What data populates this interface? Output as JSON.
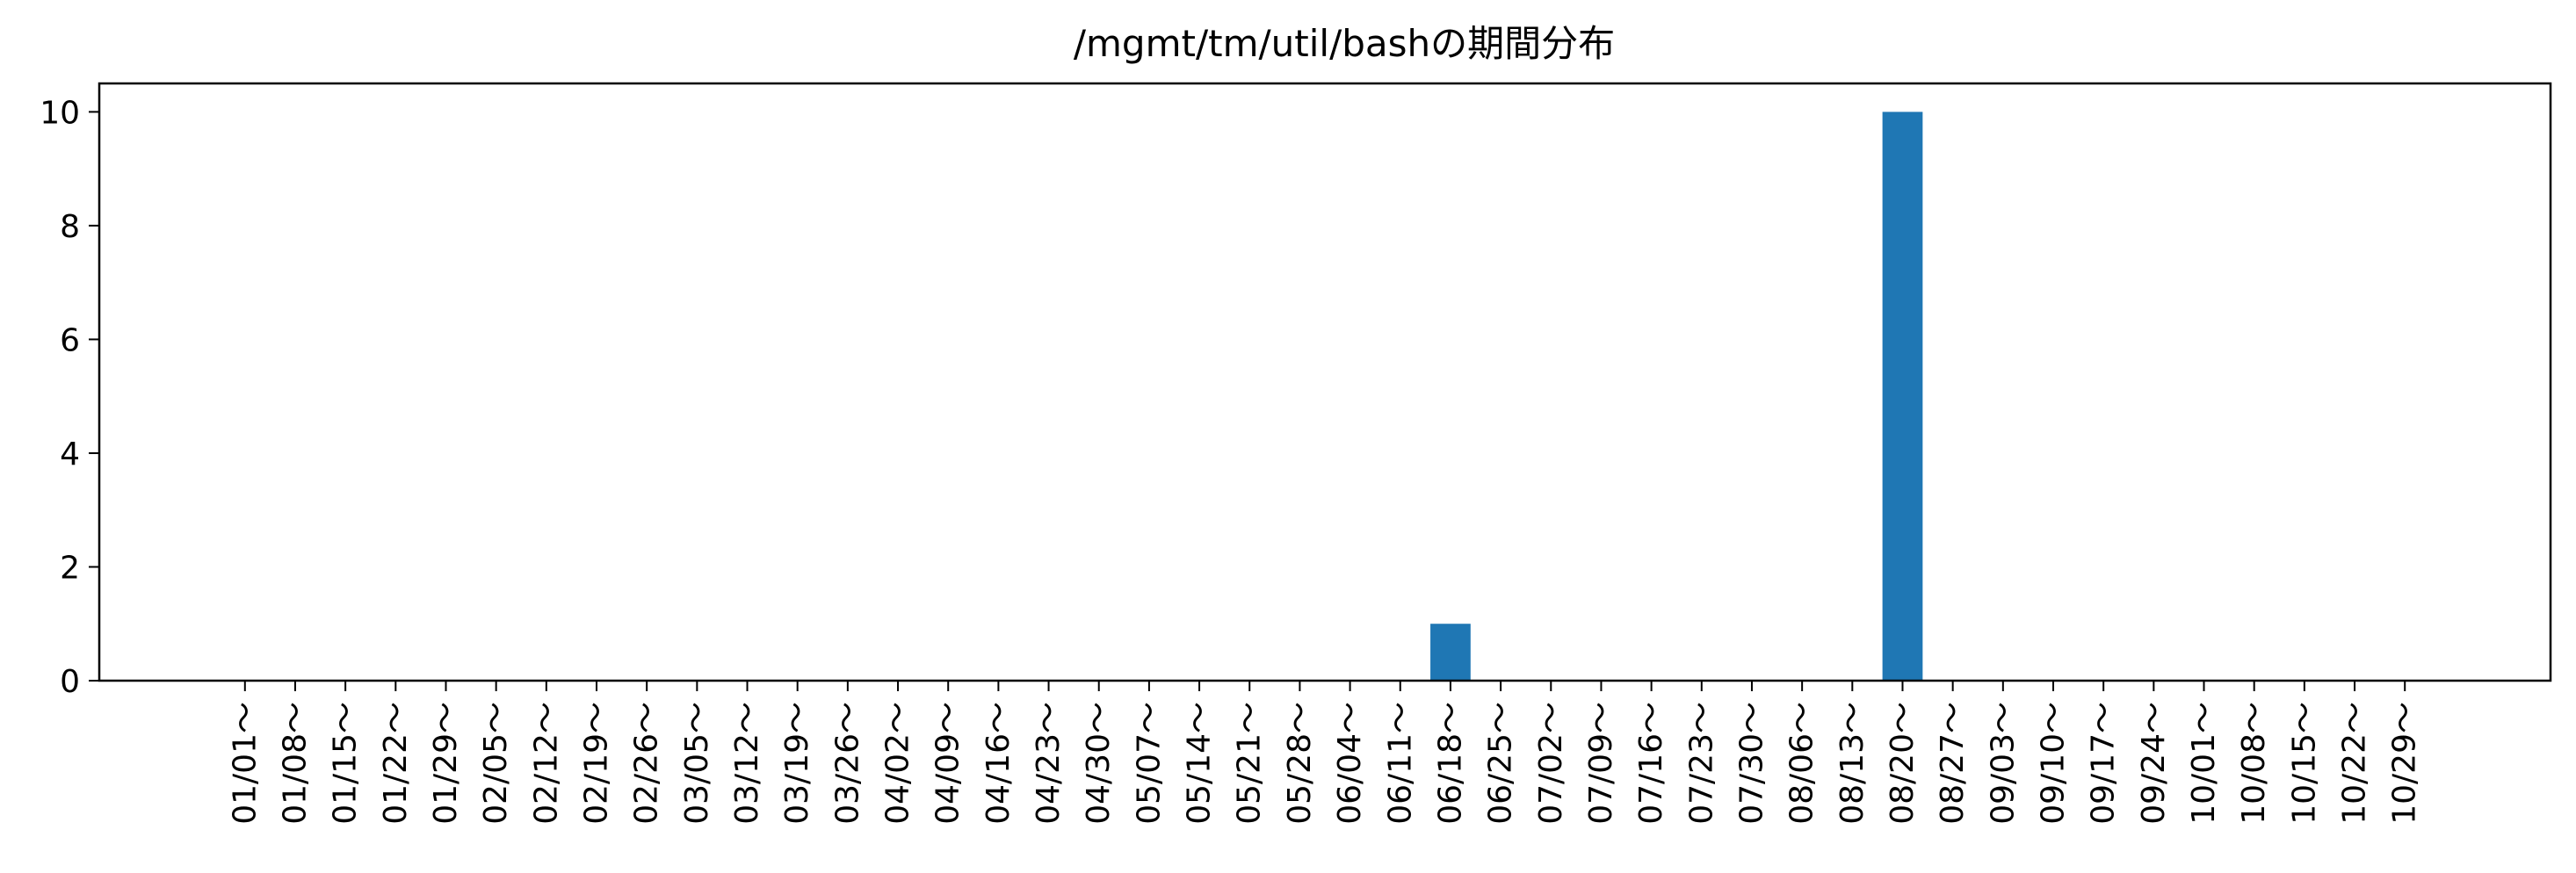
{
  "chart_data": {
    "type": "bar",
    "title": "/mgmt/tm/util/bashの期間分布",
    "xlabel": "",
    "ylabel": "",
    "categories": [
      "01/01～",
      "01/08～",
      "01/15～",
      "01/22～",
      "01/29～",
      "02/05～",
      "02/12～",
      "02/19～",
      "02/26～",
      "03/05～",
      "03/12～",
      "03/19～",
      "03/26～",
      "04/02～",
      "04/09～",
      "04/16～",
      "04/23～",
      "04/30～",
      "05/07～",
      "05/14～",
      "05/21～",
      "05/28～",
      "06/04～",
      "06/11～",
      "06/18～",
      "06/25～",
      "07/02～",
      "07/09～",
      "07/16～",
      "07/23～",
      "07/30～",
      "08/06～",
      "08/13～",
      "08/20～",
      "08/27～",
      "09/03～",
      "09/10～",
      "09/17～",
      "09/24～",
      "10/01～",
      "10/08～",
      "10/15～",
      "10/22～",
      "10/29～"
    ],
    "values": [
      0,
      0,
      0,
      0,
      0,
      0,
      0,
      0,
      0,
      0,
      0,
      0,
      0,
      0,
      0,
      0,
      0,
      0,
      0,
      0,
      0,
      0,
      0,
      0,
      1,
      0,
      0,
      0,
      0,
      0,
      0,
      0,
      0,
      10,
      0,
      0,
      0,
      0,
      0,
      0,
      0,
      0,
      0,
      0
    ],
    "ylim": [
      0,
      10.5
    ],
    "yticks": [
      0,
      2,
      4,
      6,
      8,
      10
    ],
    "grid": false,
    "bar_color": "#1f77b4"
  }
}
